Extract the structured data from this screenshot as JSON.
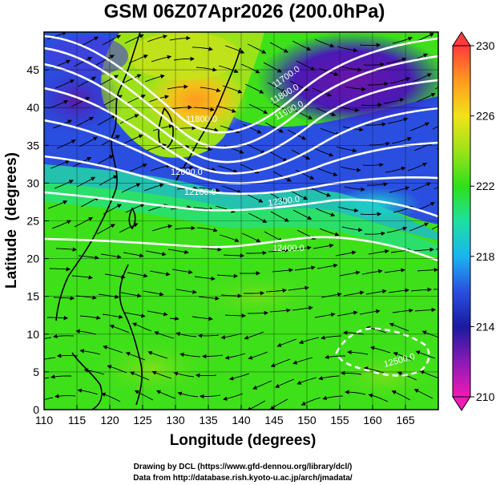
{
  "title": "GSM 06Z07Apr2026 (200.0hPa)",
  "xlabel": "Longitude (degrees)",
  "ylabel": "Latitude  (degrees)",
  "x_ticks": [
    "110",
    "115",
    "120",
    "125",
    "130",
    "135",
    "140",
    "145",
    "150",
    "155",
    "160",
    "165"
  ],
  "y_ticks": [
    "0",
    "5",
    "10",
    "15",
    "20",
    "25",
    "30",
    "35",
    "40",
    "45"
  ],
  "colorbar": {
    "labels": [
      "230",
      "226",
      "222",
      "218",
      "214",
      "210"
    ],
    "stops": [
      "#ff3b3b",
      "#ff9a1f",
      "#f2e21a",
      "#9be21a",
      "#2ee01a",
      "#1fe0a0",
      "#1ab4f0",
      "#2a4fe0",
      "#1a1aa0",
      "#8a1ab4",
      "#f01ab4"
    ]
  },
  "contour_labels": [
    "11700.0",
    "11800.0",
    "11900.0",
    "11800.0",
    "12000.0",
    "12100.0",
    "12300.0",
    "12400.0",
    "12500.0"
  ],
  "credits": {
    "line1": "Drawing by DCL (https://www.gfd-dennou.org/library/dcl/)",
    "line2": "Data from http://database.rish.kyoto-u.ac.jp/arch/jmadata/"
  },
  "chart_data": {
    "type": "heatmap",
    "variable": "temperature with geopotential height contours and wind streamlines",
    "level": "200.0hPa",
    "xlim": [
      110,
      170
    ],
    "ylim": [
      0,
      50
    ],
    "color_range": [
      210,
      230
    ],
    "x_ticks": [
      110,
      115,
      120,
      125,
      130,
      135,
      140,
      145,
      150,
      155,
      160,
      165
    ],
    "y_ticks": [
      0,
      5,
      10,
      15,
      20,
      25,
      30,
      35,
      40,
      45
    ],
    "colorbar_ticks": [
      210,
      214,
      218,
      222,
      226,
      230
    ],
    "contour_levels": [
      11700,
      11800,
      11900,
      12000,
      12100,
      12300,
      12400,
      12500
    ],
    "grid": true
  }
}
